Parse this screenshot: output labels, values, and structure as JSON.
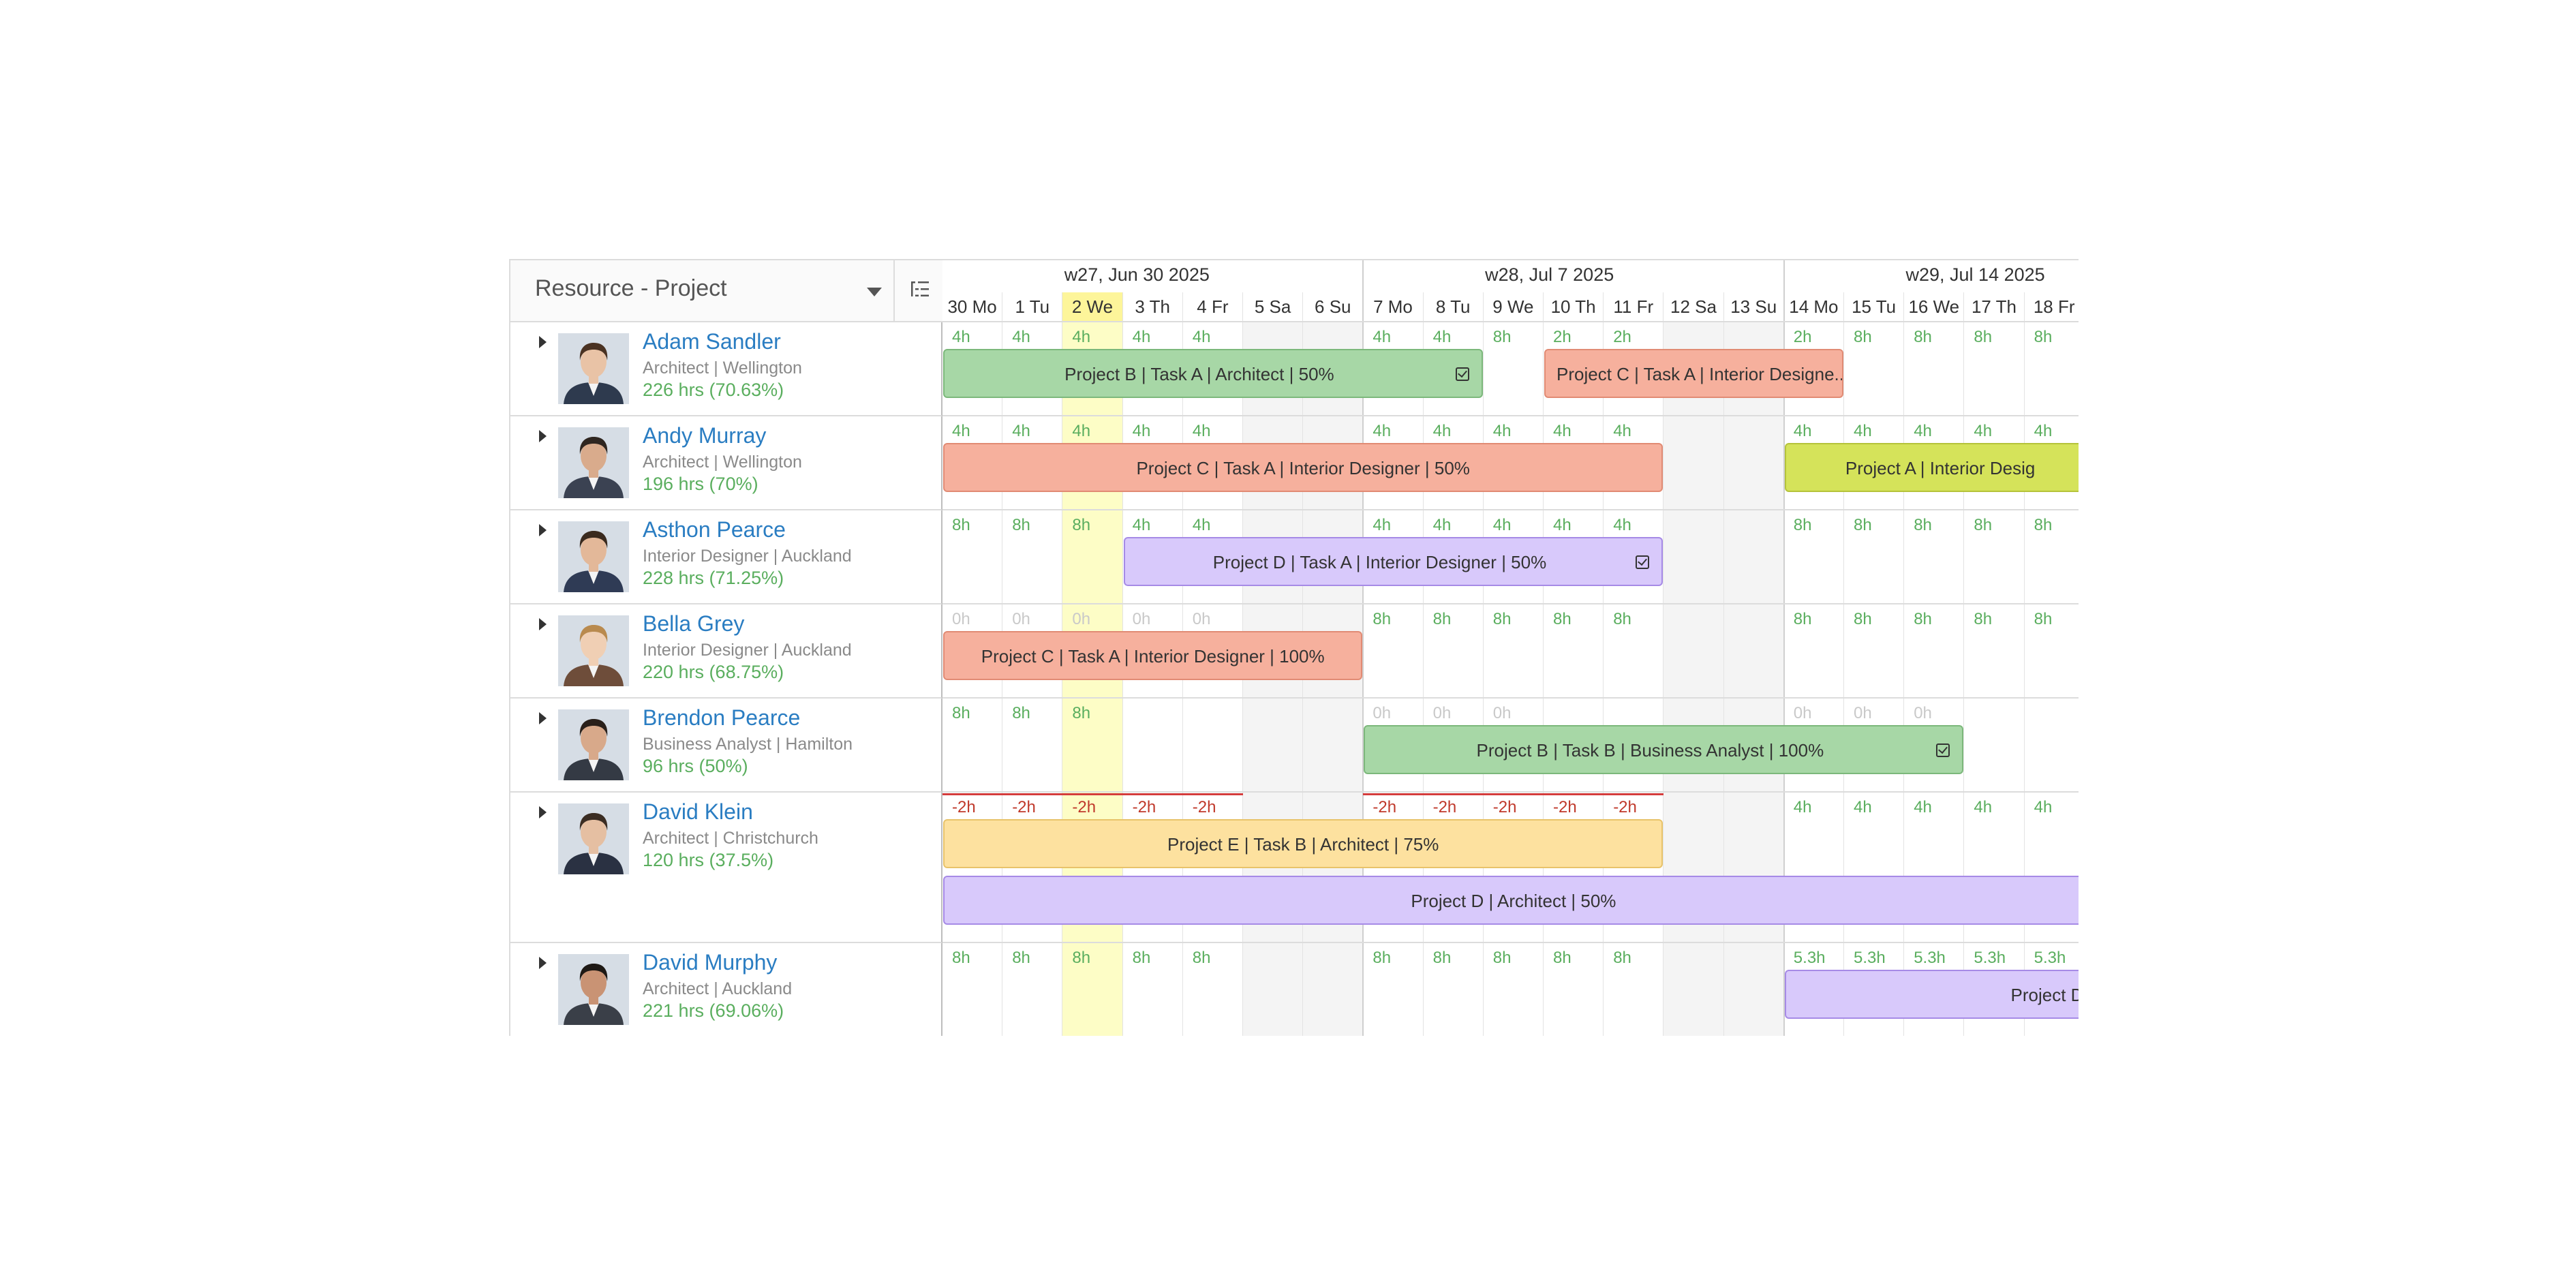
{
  "header": {
    "view_selector": "Resource - Project",
    "column_settings_icon": "list-settings-icon"
  },
  "colors": {
    "green_bar": "#a7d7a6",
    "salmon_bar": "#f6b09d",
    "purple_bar": "#d8c9fb",
    "yellow_bar": "#fde19f",
    "lime_bar": "#d5e35a",
    "name_link": "#2a7dc2",
    "hours_green": "#5aae5e",
    "overallocated_red": "#c0392b",
    "today_highlight": "#fdfdc6"
  },
  "weeks": [
    "w27, Jun 30 2025",
    "w28, Jul 7 2025",
    "w29, Jul 14 2025"
  ],
  "days": [
    {
      "label": "30 Mo"
    },
    {
      "label": "1 Tu"
    },
    {
      "label": "2 We",
      "today": true
    },
    {
      "label": "3 Th"
    },
    {
      "label": "4 Fr"
    },
    {
      "label": "5 Sa",
      "weekend": true
    },
    {
      "label": "6 Su",
      "weekend": true
    },
    {
      "label": "7 Mo"
    },
    {
      "label": "8 Tu"
    },
    {
      "label": "9 We"
    },
    {
      "label": "10 Th"
    },
    {
      "label": "11 Fr"
    },
    {
      "label": "12 Sa",
      "weekend": true
    },
    {
      "label": "13 Su",
      "weekend": true
    },
    {
      "label": "14 Mo"
    },
    {
      "label": "15 Tu"
    },
    {
      "label": "16 We"
    },
    {
      "label": "17 Th"
    },
    {
      "label": "18 Fr"
    }
  ],
  "resources": [
    {
      "name": "Adam Sandler",
      "role": "Architect | Wellington",
      "hours": "226 hrs (70.63%)",
      "avatar_icon": "person-avatar-icon",
      "availability": [
        "4h",
        "4h",
        "4h",
        "4h",
        "4h",
        "",
        "",
        "4h",
        "4h",
        "8h",
        "2h",
        "2h",
        "",
        "",
        "2h",
        "8h",
        "8h",
        "8h",
        "8h"
      ],
      "bars": [
        {
          "label": "Project B | Task A | Architect | 50%",
          "start": 0,
          "end": 9,
          "color": "green",
          "check": true,
          "lane": 0
        },
        {
          "label": "Project C | Task A | Interior Designe...",
          "start": 10,
          "end": 15,
          "color": "salmon",
          "check": false,
          "lane": 0
        }
      ]
    },
    {
      "name": "Andy Murray",
      "role": "Architect | Wellington",
      "hours": "196 hrs (70%)",
      "avatar_icon": "person-avatar-icon",
      "availability": [
        "4h",
        "4h",
        "4h",
        "4h",
        "4h",
        "",
        "",
        "4h",
        "4h",
        "4h",
        "4h",
        "4h",
        "",
        "",
        "4h",
        "4h",
        "4h",
        "4h",
        "4h"
      ],
      "bars": [
        {
          "label": "Project C | Task A | Interior Designer | 50%",
          "start": 0,
          "end": 12,
          "color": "salmon",
          "check": false,
          "lane": 0
        },
        {
          "label": "Project A | Interior Desig",
          "start": 14,
          "end": 19.2,
          "color": "lime",
          "check": false,
          "lane": 0
        }
      ]
    },
    {
      "name": "Asthon Pearce",
      "role": "Interior Designer | Auckland",
      "hours": "228 hrs (71.25%)",
      "avatar_icon": "person-avatar-icon",
      "availability": [
        "8h",
        "8h",
        "8h",
        "4h",
        "4h",
        "",
        "",
        "4h",
        "4h",
        "4h",
        "4h",
        "4h",
        "",
        "",
        "8h",
        "8h",
        "8h",
        "8h",
        "8h"
      ],
      "bars": [
        {
          "label": "Project D | Task A | Interior Designer | 50%",
          "start": 3,
          "end": 12,
          "color": "purple",
          "check": true,
          "lane": 0
        }
      ]
    },
    {
      "name": "Bella Grey",
      "role": "Interior Designer | Auckland",
      "hours": "220 hrs (68.75%)",
      "avatar_icon": "person-avatar-icon",
      "availability": [
        "0h",
        "0h",
        "0h",
        "0h",
        "0h",
        "",
        "",
        "8h",
        "8h",
        "8h",
        "8h",
        "8h",
        "",
        "",
        "8h",
        "8h",
        "8h",
        "8h",
        "8h"
      ],
      "bars": [
        {
          "label": "Project C | Task A | Interior Designer | 100%",
          "start": 0,
          "end": 7,
          "color": "salmon",
          "check": false,
          "lane": 0
        }
      ]
    },
    {
      "name": "Brendon Pearce",
      "role": "Business Analyst | Hamilton",
      "hours": "96 hrs (50%)",
      "avatar_icon": "person-avatar-icon",
      "availability": [
        "8h",
        "8h",
        "8h",
        "",
        "",
        "",
        "",
        "0h",
        "0h",
        "0h",
        "",
        "",
        "",
        "",
        "0h",
        "0h",
        "0h",
        "",
        ""
      ],
      "bars": [
        {
          "label": "Project B | Task B | Business Analyst | 100%",
          "start": 7,
          "end": 17,
          "color": "green",
          "check": true,
          "lane": 0
        }
      ]
    },
    {
      "name": "David Klein",
      "role": "Architect | Christchurch",
      "hours": "120 hrs (37.5%)",
      "avatar_icon": "person-avatar-icon",
      "availability": [
        "-2h",
        "-2h",
        "-2h",
        "-2h",
        "-2h",
        "",
        "",
        "-2h",
        "-2h",
        "-2h",
        "-2h",
        "-2h",
        "",
        "",
        "4h",
        "4h",
        "4h",
        "4h",
        "4h"
      ],
      "bars": [
        {
          "label": "Project E | Task B | Architect | 75%",
          "start": 0,
          "end": 12,
          "color": "yellow",
          "check": false,
          "lane": 0
        },
        {
          "label": "Project D | Architect | 50%",
          "start": 0,
          "end": 19,
          "color": "purple",
          "check": false,
          "lane": 1
        }
      ]
    },
    {
      "name": "David Murphy",
      "role": "Architect | Auckland",
      "hours": "221 hrs (69.06%)",
      "avatar_icon": "person-avatar-icon",
      "availability": [
        "8h",
        "8h",
        "8h",
        "8h",
        "8h",
        "",
        "",
        "8h",
        "8h",
        "8h",
        "8h",
        "8h",
        "",
        "",
        "5.3h",
        "5.3h",
        "5.3h",
        "5.3h",
        "5.3h"
      ],
      "bars": [
        {
          "label": "Project D",
          "start": 14,
          "end": 19.2,
          "color": "purple",
          "check": false,
          "lane": 0,
          "align": "right"
        }
      ]
    }
  ]
}
